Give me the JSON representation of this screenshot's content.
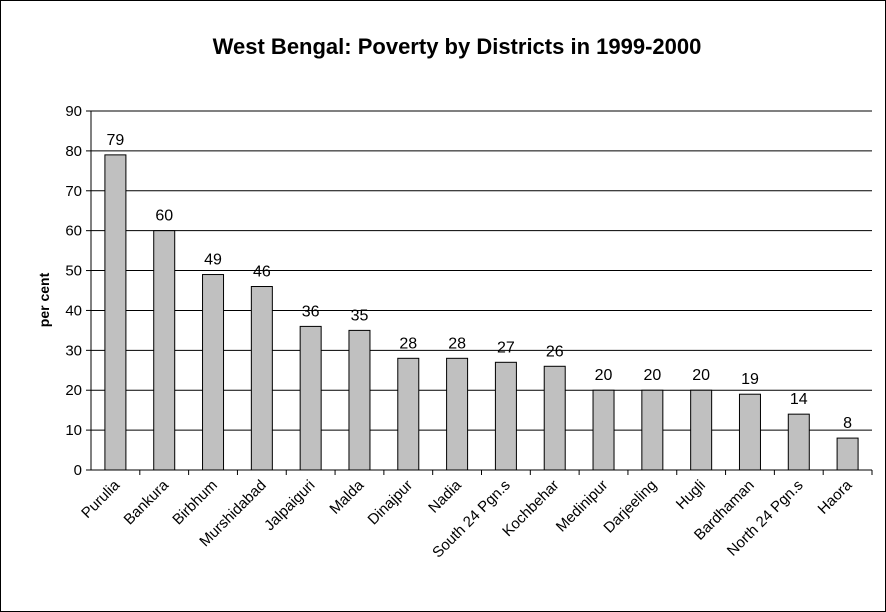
{
  "chart_data": {
    "type": "bar",
    "title": "West Bengal: Poverty by Districts in 1999-2000",
    "xlabel": "",
    "ylabel": "per cent",
    "ylim": [
      0,
      90
    ],
    "yticks": [
      0,
      10,
      20,
      30,
      40,
      50,
      60,
      70,
      80,
      90
    ],
    "grid": true,
    "legend": "none",
    "bar_color": "#c0c0c0",
    "categories": [
      "Purulia",
      "Bankura",
      "Birbhum",
      "Murshidabad",
      "Jalpaiguri",
      "Malda",
      "Dinajpur",
      "Nadia",
      "South 24 Pgn.s",
      "Kochbehar",
      "Medinipur",
      "Darjeeling",
      "Hugli",
      "Bardhaman",
      "North 24 Pgn.s",
      "Haora"
    ],
    "values": [
      79,
      60,
      49,
      46,
      36,
      35,
      28,
      28,
      27,
      26,
      20,
      20,
      20,
      19,
      14,
      8
    ]
  }
}
